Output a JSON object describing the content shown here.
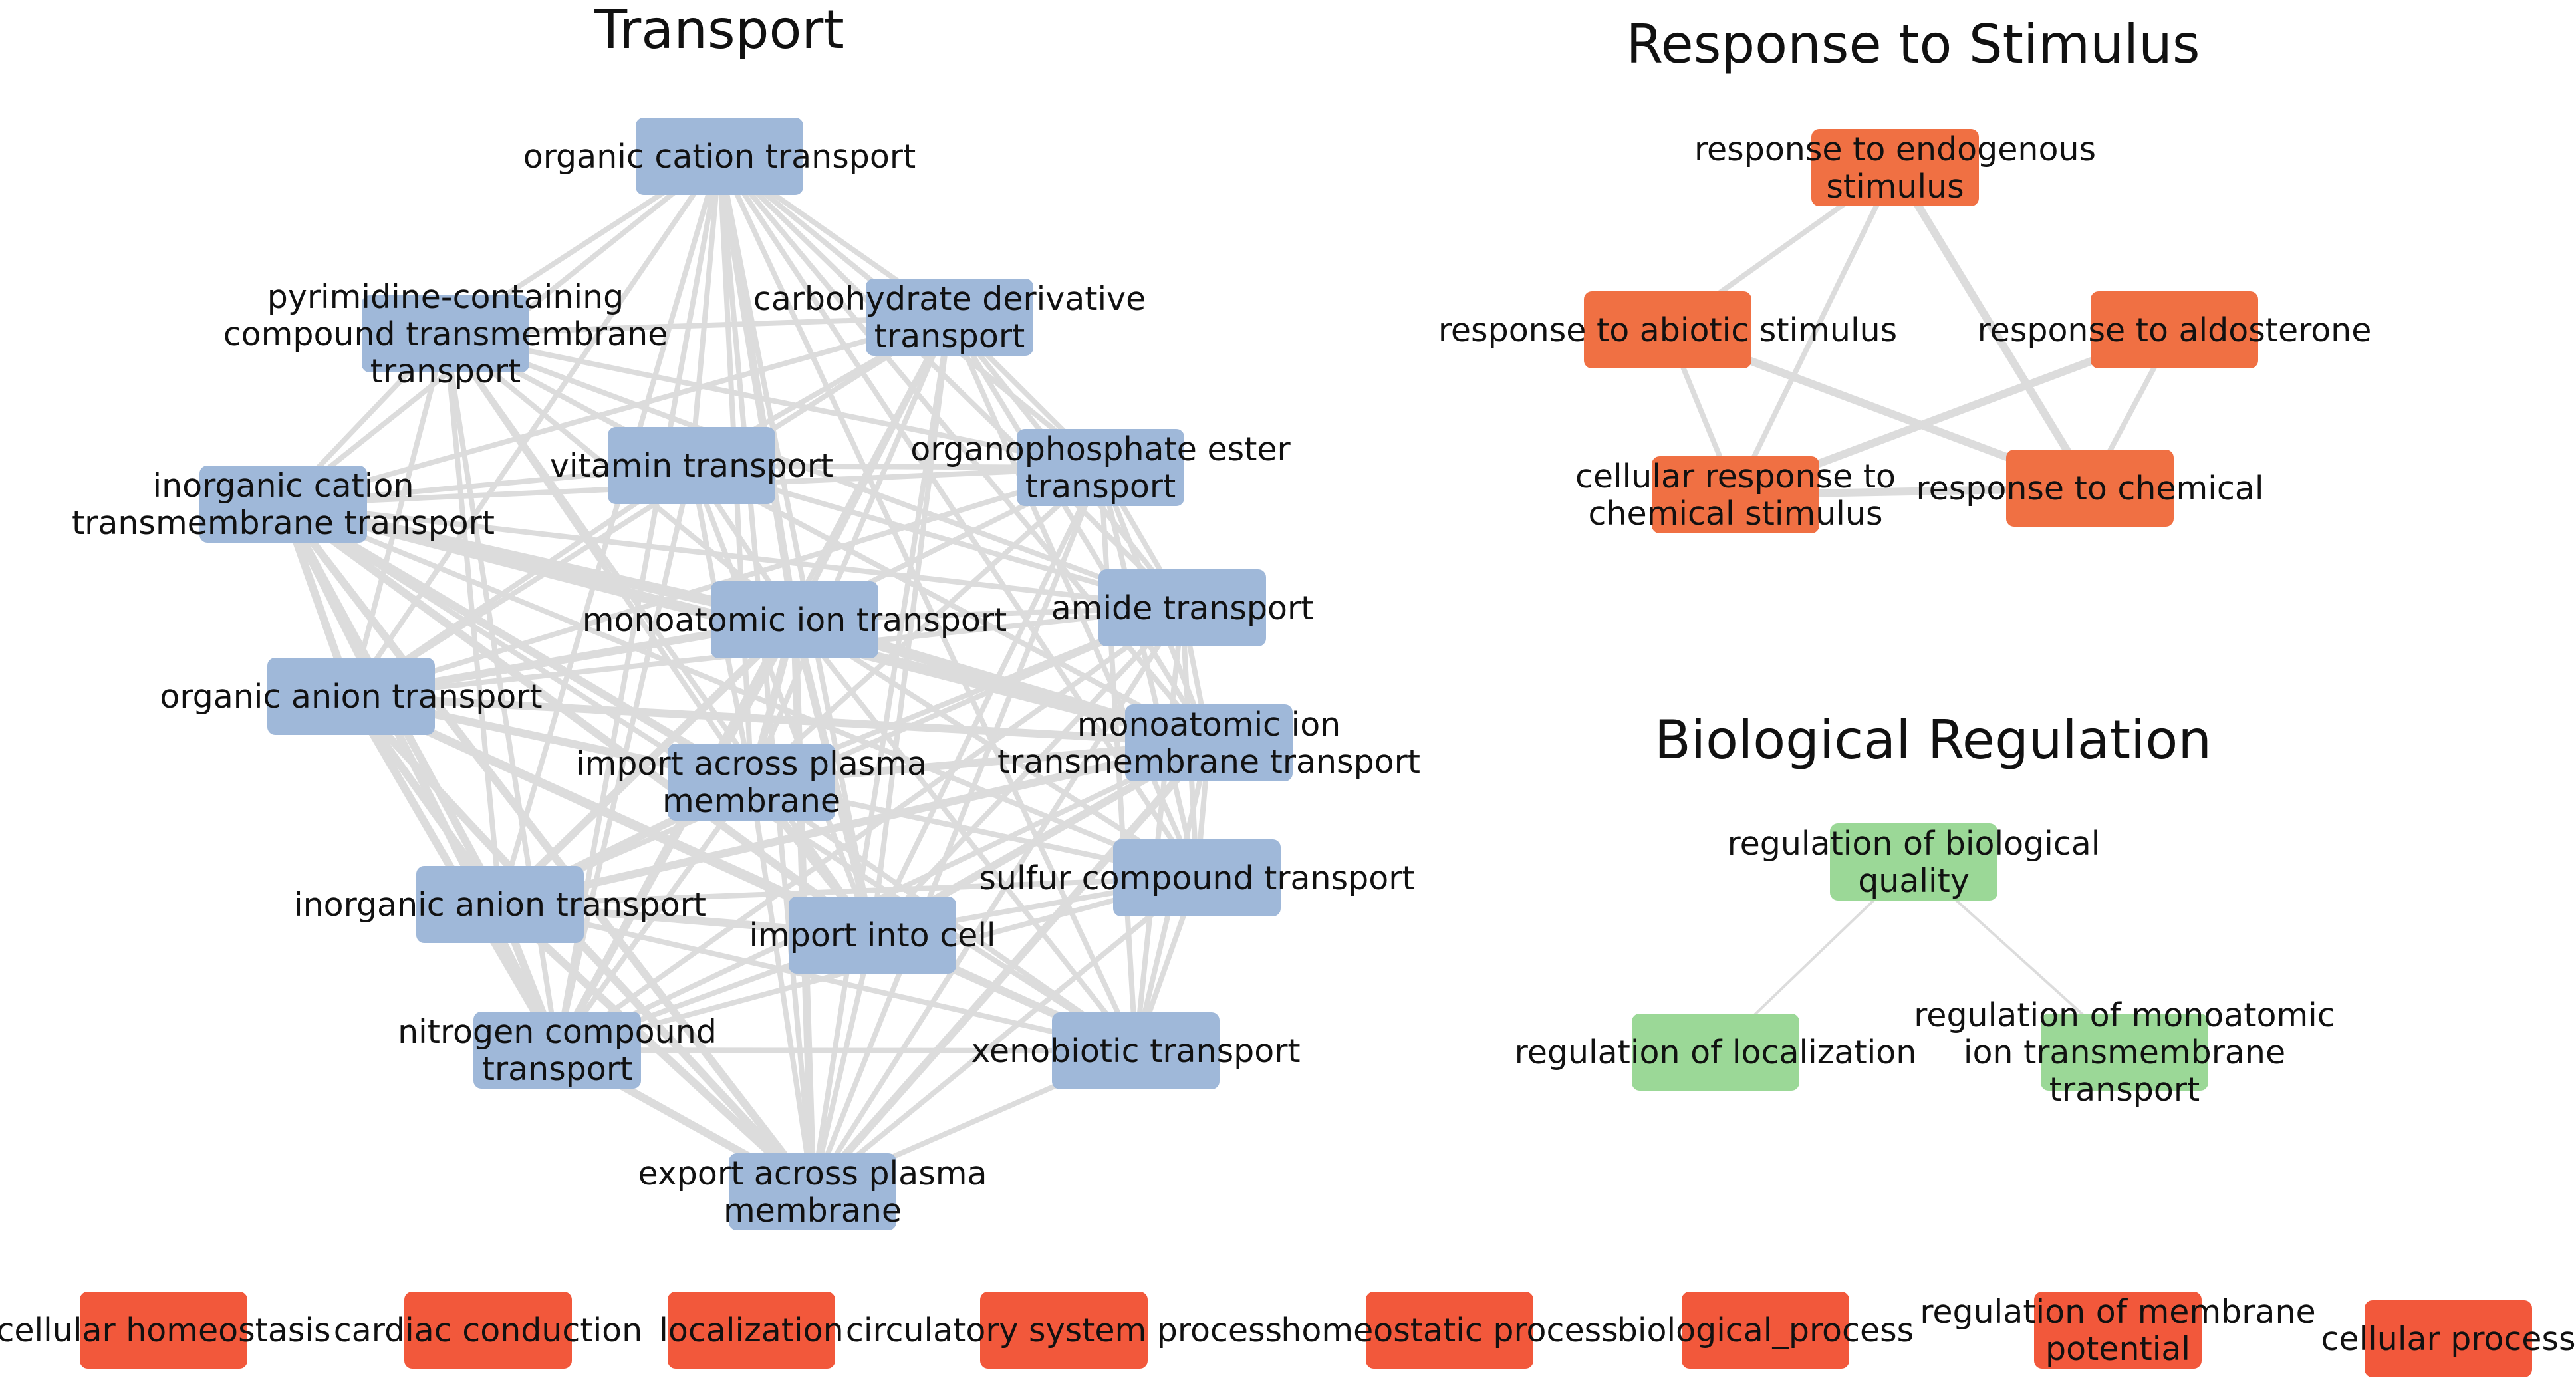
{
  "colors": {
    "transport": "#9fb8d9",
    "stimulus": "#f07043",
    "regulation": "#9bd897",
    "orphan": "#f2583b",
    "edge": "#dcdcdc"
  },
  "clusters": [
    {
      "id": "transport",
      "title": "Transport",
      "color_key": "transport",
      "nodes": [
        {
          "id": "oct",
          "lines": [
            "organic cation transport"
          ]
        },
        {
          "id": "pyr",
          "lines": [
            "pyrimidine-containing",
            "compound transmembrane",
            "transport"
          ]
        },
        {
          "id": "carb",
          "lines": [
            "carbohydrate derivative",
            "transport"
          ]
        },
        {
          "id": "vit",
          "lines": [
            "vitamin transport"
          ]
        },
        {
          "id": "opho",
          "lines": [
            "organophosphate ester",
            "transport"
          ]
        },
        {
          "id": "icat",
          "lines": [
            "inorganic cation",
            "transmembrane transport"
          ]
        },
        {
          "id": "mion",
          "lines": [
            "monoatomic ion transport"
          ]
        },
        {
          "id": "amide",
          "lines": [
            "amide transport"
          ]
        },
        {
          "id": "oanion",
          "lines": [
            "organic anion transport"
          ]
        },
        {
          "id": "mitt",
          "lines": [
            "monoatomic ion",
            "transmembrane transport"
          ]
        },
        {
          "id": "import_pm",
          "lines": [
            "import across plasma",
            "membrane"
          ]
        },
        {
          "id": "sulfur",
          "lines": [
            "sulfur compound transport"
          ]
        },
        {
          "id": "ianion",
          "lines": [
            "inorganic anion transport"
          ]
        },
        {
          "id": "import_cell",
          "lines": [
            "import into cell"
          ]
        },
        {
          "id": "nitro",
          "lines": [
            "nitrogen compound",
            "transport"
          ]
        },
        {
          "id": "xeno",
          "lines": [
            "xenobiotic transport"
          ]
        },
        {
          "id": "export_pm",
          "lines": [
            "export across plasma",
            "membrane"
          ]
        }
      ],
      "edges": [
        [
          "oct",
          "pyr",
          2
        ],
        [
          "oct",
          "carb",
          2
        ],
        [
          "oct",
          "vit",
          2
        ],
        [
          "oct",
          "opho",
          2
        ],
        [
          "oct",
          "icat",
          2
        ],
        [
          "oct",
          "mion",
          3
        ],
        [
          "oct",
          "amide",
          2
        ],
        [
          "oct",
          "oanion",
          2
        ],
        [
          "oct",
          "mitt",
          2
        ],
        [
          "oct",
          "import_pm",
          2
        ],
        [
          "oct",
          "sulfur",
          2
        ],
        [
          "oct",
          "ianion",
          2
        ],
        [
          "oct",
          "import_cell",
          2
        ],
        [
          "oct",
          "nitro",
          2
        ],
        [
          "oct",
          "xeno",
          2
        ],
        [
          "oct",
          "export_pm",
          2
        ],
        [
          "pyr",
          "carb",
          2
        ],
        [
          "pyr",
          "vit",
          2
        ],
        [
          "pyr",
          "opho",
          2
        ],
        [
          "pyr",
          "icat",
          2
        ],
        [
          "pyr",
          "mion",
          2
        ],
        [
          "pyr",
          "amide",
          2
        ],
        [
          "pyr",
          "oanion",
          2
        ],
        [
          "pyr",
          "mitt",
          2
        ],
        [
          "pyr",
          "import_pm",
          2
        ],
        [
          "pyr",
          "ianion",
          2
        ],
        [
          "pyr",
          "import_cell",
          2
        ],
        [
          "pyr",
          "nitro",
          2
        ],
        [
          "carb",
          "vit",
          2
        ],
        [
          "carb",
          "opho",
          2
        ],
        [
          "carb",
          "icat",
          2
        ],
        [
          "carb",
          "mion",
          2
        ],
        [
          "carb",
          "amide",
          2
        ],
        [
          "carb",
          "oanion",
          2
        ],
        [
          "carb",
          "mitt",
          2
        ],
        [
          "carb",
          "import_pm",
          2
        ],
        [
          "carb",
          "sulfur",
          2
        ],
        [
          "carb",
          "import_cell",
          2
        ],
        [
          "carb",
          "nitro",
          2
        ],
        [
          "carb",
          "export_pm",
          2
        ],
        [
          "vit",
          "opho",
          2
        ],
        [
          "vit",
          "icat",
          2
        ],
        [
          "vit",
          "mion",
          2
        ],
        [
          "vit",
          "amide",
          2
        ],
        [
          "vit",
          "oanion",
          2
        ],
        [
          "vit",
          "mitt",
          2
        ],
        [
          "vit",
          "import_pm",
          2
        ],
        [
          "vit",
          "import_cell",
          2
        ],
        [
          "vit",
          "nitro",
          2
        ],
        [
          "opho",
          "icat",
          2
        ],
        [
          "opho",
          "mion",
          2
        ],
        [
          "opho",
          "amide",
          2
        ],
        [
          "opho",
          "oanion",
          2
        ],
        [
          "opho",
          "mitt",
          2
        ],
        [
          "opho",
          "import_pm",
          2
        ],
        [
          "opho",
          "sulfur",
          2
        ],
        [
          "opho",
          "import_cell",
          2
        ],
        [
          "opho",
          "xeno",
          2
        ],
        [
          "opho",
          "export_pm",
          2
        ],
        [
          "icat",
          "mion",
          4
        ],
        [
          "icat",
          "amide",
          2
        ],
        [
          "icat",
          "oanion",
          3
        ],
        [
          "icat",
          "mitt",
          4
        ],
        [
          "icat",
          "import_pm",
          3
        ],
        [
          "icat",
          "sulfur",
          2
        ],
        [
          "icat",
          "ianion",
          3
        ],
        [
          "icat",
          "import_cell",
          3
        ],
        [
          "icat",
          "nitro",
          3
        ],
        [
          "icat",
          "xeno",
          2
        ],
        [
          "icat",
          "export_pm",
          3
        ],
        [
          "mion",
          "amide",
          2
        ],
        [
          "mion",
          "oanion",
          3
        ],
        [
          "mion",
          "mitt",
          4
        ],
        [
          "mion",
          "import_pm",
          3
        ],
        [
          "mion",
          "sulfur",
          2
        ],
        [
          "mion",
          "ianion",
          3
        ],
        [
          "mion",
          "import_cell",
          3
        ],
        [
          "mion",
          "nitro",
          3
        ],
        [
          "mion",
          "xeno",
          2
        ],
        [
          "mion",
          "export_pm",
          3
        ],
        [
          "amide",
          "oanion",
          2
        ],
        [
          "amide",
          "mitt",
          2
        ],
        [
          "amide",
          "import_pm",
          2
        ],
        [
          "amide",
          "sulfur",
          2
        ],
        [
          "amide",
          "ianion",
          2
        ],
        [
          "amide",
          "import_cell",
          2
        ],
        [
          "amide",
          "nitro",
          2
        ],
        [
          "amide",
          "xeno",
          2
        ],
        [
          "amide",
          "export_pm",
          2
        ],
        [
          "oanion",
          "mitt",
          3
        ],
        [
          "oanion",
          "import_pm",
          3
        ],
        [
          "oanion",
          "sulfur",
          2
        ],
        [
          "oanion",
          "ianion",
          3
        ],
        [
          "oanion",
          "import_cell",
          3
        ],
        [
          "oanion",
          "nitro",
          3
        ],
        [
          "oanion",
          "xeno",
          3
        ],
        [
          "oanion",
          "export_pm",
          3
        ],
        [
          "mitt",
          "import_pm",
          3
        ],
        [
          "mitt",
          "sulfur",
          2
        ],
        [
          "mitt",
          "ianion",
          3
        ],
        [
          "mitt",
          "import_cell",
          3
        ],
        [
          "mitt",
          "nitro",
          2
        ],
        [
          "mitt",
          "xeno",
          2
        ],
        [
          "mitt",
          "export_pm",
          3
        ],
        [
          "import_pm",
          "sulfur",
          2
        ],
        [
          "import_pm",
          "ianion",
          3
        ],
        [
          "import_pm",
          "import_cell",
          3
        ],
        [
          "import_pm",
          "nitro",
          2
        ],
        [
          "import_pm",
          "xeno",
          2
        ],
        [
          "import_pm",
          "export_pm",
          2
        ],
        [
          "sulfur",
          "ianion",
          2
        ],
        [
          "sulfur",
          "import_cell",
          2
        ],
        [
          "sulfur",
          "nitro",
          2
        ],
        [
          "sulfur",
          "xeno",
          2
        ],
        [
          "sulfur",
          "export_pm",
          2
        ],
        [
          "ianion",
          "import_cell",
          3
        ],
        [
          "ianion",
          "nitro",
          3
        ],
        [
          "ianion",
          "xeno",
          2
        ],
        [
          "ianion",
          "export_pm",
          3
        ],
        [
          "import_cell",
          "nitro",
          2
        ],
        [
          "import_cell",
          "xeno",
          2
        ],
        [
          "import_cell",
          "export_pm",
          2
        ],
        [
          "nitro",
          "xeno",
          2
        ],
        [
          "nitro",
          "export_pm",
          3
        ],
        [
          "xeno",
          "export_pm",
          2
        ]
      ]
    },
    {
      "id": "stimulus",
      "title": "Response to Stimulus",
      "color_key": "stimulus",
      "nodes": [
        {
          "id": "endo",
          "lines": [
            "response to endogenous",
            "stimulus"
          ]
        },
        {
          "id": "abiotic",
          "lines": [
            "response to abiotic stimulus"
          ]
        },
        {
          "id": "aldo",
          "lines": [
            "response to aldosterone"
          ]
        },
        {
          "id": "cellchem",
          "lines": [
            "cellular response to",
            "chemical stimulus"
          ]
        },
        {
          "id": "chem",
          "lines": [
            "response to chemical"
          ]
        }
      ],
      "edges": [
        [
          "endo",
          "abiotic",
          2
        ],
        [
          "endo",
          "cellchem",
          2
        ],
        [
          "endo",
          "chem",
          3
        ],
        [
          "abiotic",
          "cellchem",
          2
        ],
        [
          "abiotic",
          "chem",
          3
        ],
        [
          "aldo",
          "cellchem",
          3
        ],
        [
          "aldo",
          "chem",
          2
        ],
        [
          "cellchem",
          "chem",
          3
        ]
      ]
    },
    {
      "id": "regulation",
      "title": "Biological Regulation",
      "color_key": "regulation",
      "nodes": [
        {
          "id": "rbq",
          "lines": [
            "regulation of biological",
            "quality"
          ]
        },
        {
          "id": "rloc",
          "lines": [
            "regulation of localization"
          ]
        },
        {
          "id": "rmitt",
          "lines": [
            "regulation of monoatomic",
            "ion transmembrane",
            "transport"
          ]
        }
      ],
      "edges": [
        [
          "rbq",
          "rloc",
          1
        ],
        [
          "rbq",
          "rmitt",
          1
        ]
      ]
    }
  ],
  "orphans": [
    {
      "id": "chom",
      "lines": [
        "cellular homeostasis"
      ]
    },
    {
      "id": "ccond",
      "lines": [
        "cardiac conduction"
      ]
    },
    {
      "id": "loc",
      "lines": [
        "localization"
      ]
    },
    {
      "id": "circ",
      "lines": [
        "circulatory system process"
      ]
    },
    {
      "id": "homeo",
      "lines": [
        "homeostatic process"
      ]
    },
    {
      "id": "biop",
      "lines": [
        "biological_process"
      ]
    },
    {
      "id": "rmem",
      "lines": [
        "regulation of membrane",
        "potential"
      ]
    },
    {
      "id": "cproc",
      "lines": [
        "cellular process"
      ]
    }
  ]
}
